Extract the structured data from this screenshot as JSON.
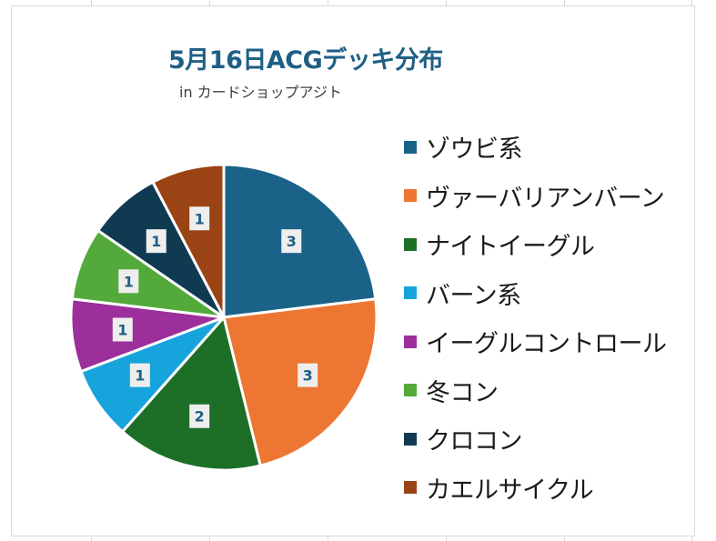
{
  "chart_data": {
    "type": "pie",
    "title": "5月16日ACGデッキ分布",
    "subtitle": "in カードショップアジト",
    "categories": [
      "ゾウビ系",
      "ヴァーバリアンバーン",
      "ナイトイーグル",
      "バーン系",
      "イーグルコントロール",
      "冬コン",
      "クロコン",
      "カエルサイクル"
    ],
    "values": [
      3,
      3,
      2,
      1,
      1,
      1,
      1,
      1
    ],
    "colors": [
      "#1b6289",
      "#ed7633",
      "#1d6f28",
      "#17a4dc",
      "#9c2f9b",
      "#53a93a",
      "#0f3a52",
      "#9a4314"
    ],
    "legend_position": "right",
    "data_labels": true
  }
}
